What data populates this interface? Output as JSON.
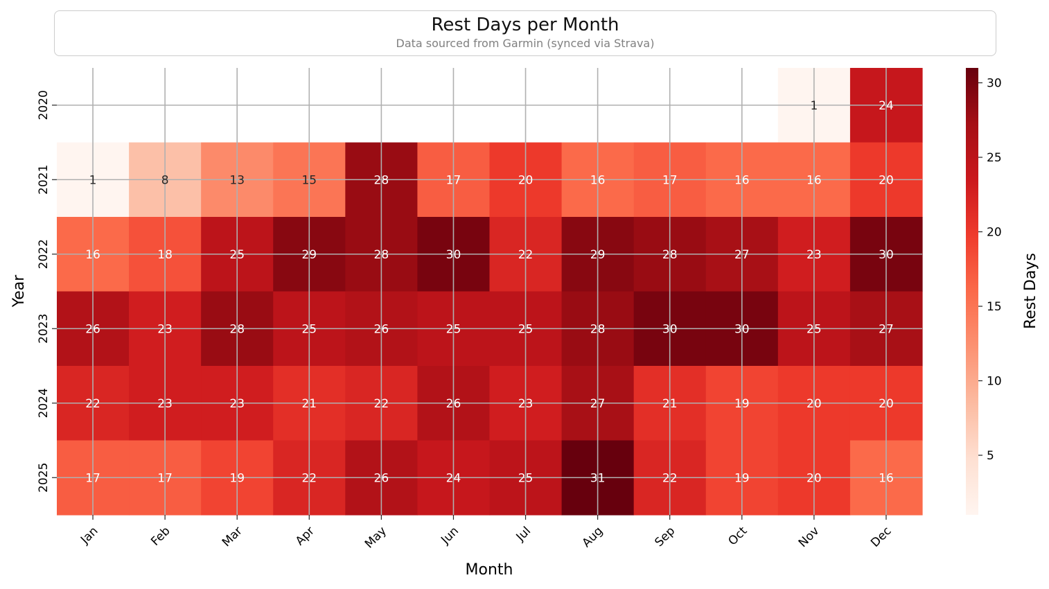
{
  "chart_data": {
    "type": "heatmap",
    "title": "Rest Days per Month",
    "subtitle": "Data sourced from Garmin (synced via Strava)",
    "xlabel": "Month",
    "ylabel": "Year",
    "colorbar_label": "Rest Days",
    "colormap": "Reds",
    "vmin": 1,
    "vmax": 31,
    "colorbar_ticks": [
      5,
      10,
      15,
      20,
      25,
      30
    ],
    "x": [
      "Jan",
      "Feb",
      "Mar",
      "Apr",
      "May",
      "Jun",
      "Jul",
      "Aug",
      "Sep",
      "Oct",
      "Nov",
      "Dec"
    ],
    "y": [
      "2020",
      "2021",
      "2022",
      "2023",
      "2024",
      "2025"
    ],
    "values": [
      [
        null,
        null,
        null,
        null,
        null,
        null,
        null,
        null,
        null,
        null,
        1,
        24
      ],
      [
        1,
        8,
        13,
        15,
        28,
        17,
        20,
        16,
        17,
        16,
        16,
        20
      ],
      [
        16,
        18,
        25,
        29,
        28,
        30,
        22,
        29,
        28,
        27,
        23,
        30
      ],
      [
        26,
        23,
        28,
        25,
        26,
        25,
        25,
        28,
        30,
        30,
        25,
        27
      ],
      [
        22,
        23,
        23,
        21,
        22,
        26,
        23,
        27,
        21,
        19,
        20,
        20
      ],
      [
        17,
        17,
        19,
        22,
        26,
        24,
        25,
        31,
        22,
        19,
        20,
        16
      ]
    ],
    "grid": true
  }
}
